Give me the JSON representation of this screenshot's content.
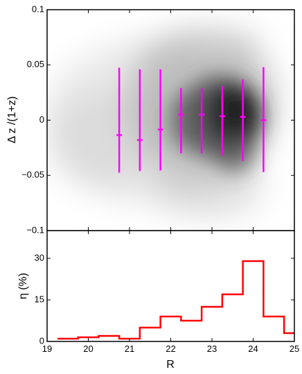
{
  "chart_data": [
    {
      "type": "scatter",
      "title": "",
      "xlabel": "",
      "ylabel": "Δ z /(1+z)",
      "xlim": [
        19,
        25
      ],
      "ylim": [
        -0.1,
        0.1
      ],
      "y_ticks": [
        -0.1,
        -0.05,
        0,
        0.05,
        0.1
      ],
      "y_tick_labels": [
        "−0.1",
        "−0.05",
        "0",
        "0.05",
        "0.1"
      ],
      "grid": false,
      "background": "grayscale density map",
      "errorbar_color": "#ff00ff",
      "series": [
        {
          "x": [
            20.75,
            21.25,
            21.75,
            22.25,
            22.75,
            23.25,
            23.75,
            24.25
          ],
          "y": [
            -0.0135,
            -0.018,
            -0.0085,
            0.005,
            0.005,
            0.0035,
            0.003,
            0.0
          ],
          "yerr_low": [
            -0.0475,
            -0.046,
            -0.0455,
            -0.03,
            -0.03,
            -0.032,
            -0.037,
            -0.047
          ],
          "yerr_high": [
            0.0475,
            0.046,
            0.046,
            0.029,
            0.029,
            0.031,
            0.037,
            0.048
          ]
        }
      ]
    },
    {
      "type": "line",
      "step": true,
      "title": "",
      "xlabel": "R",
      "ylabel": "η (%)",
      "xlim": [
        19,
        25
      ],
      "ylim": [
        0,
        40
      ],
      "x_ticks": [
        19,
        20,
        21,
        22,
        23,
        24,
        25
      ],
      "y_ticks": [
        0,
        15,
        30
      ],
      "line_color": "#ff0000",
      "series": [
        {
          "bin_edges": [
            19.25,
            19.75,
            20.25,
            20.75,
            21.25,
            21.75,
            22.25,
            22.75,
            23.25,
            23.75,
            24.25,
            24.75,
            25.0
          ],
          "values": [
            1.0,
            1.5,
            2.0,
            1.0,
            5.0,
            9.0,
            7.5,
            12.5,
            17.0,
            29.0,
            9.0,
            3.0
          ]
        }
      ]
    }
  ]
}
